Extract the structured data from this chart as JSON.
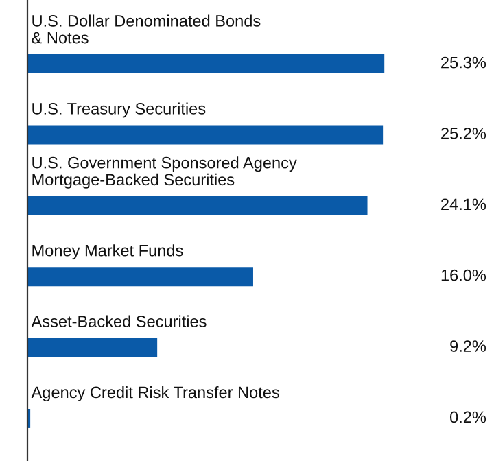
{
  "chart_data": {
    "type": "bar",
    "orientation": "horizontal",
    "categories": [
      "U.S. Dollar Denominated Bonds\n& Notes",
      "U.S. Treasury Securities",
      "U.S. Government Sponsored Agency\nMortgage-Backed Securities",
      "Money Market Funds",
      "Asset-Backed Securities",
      "Agency Credit Risk Transfer Notes"
    ],
    "values": [
      25.3,
      25.2,
      24.1,
      16.0,
      9.2,
      0.2
    ],
    "value_labels": [
      "25.3%",
      "25.2%",
      "24.1%",
      "16.0%",
      "9.2%",
      "0.2%"
    ],
    "color": "#0a5aa8"
  }
}
